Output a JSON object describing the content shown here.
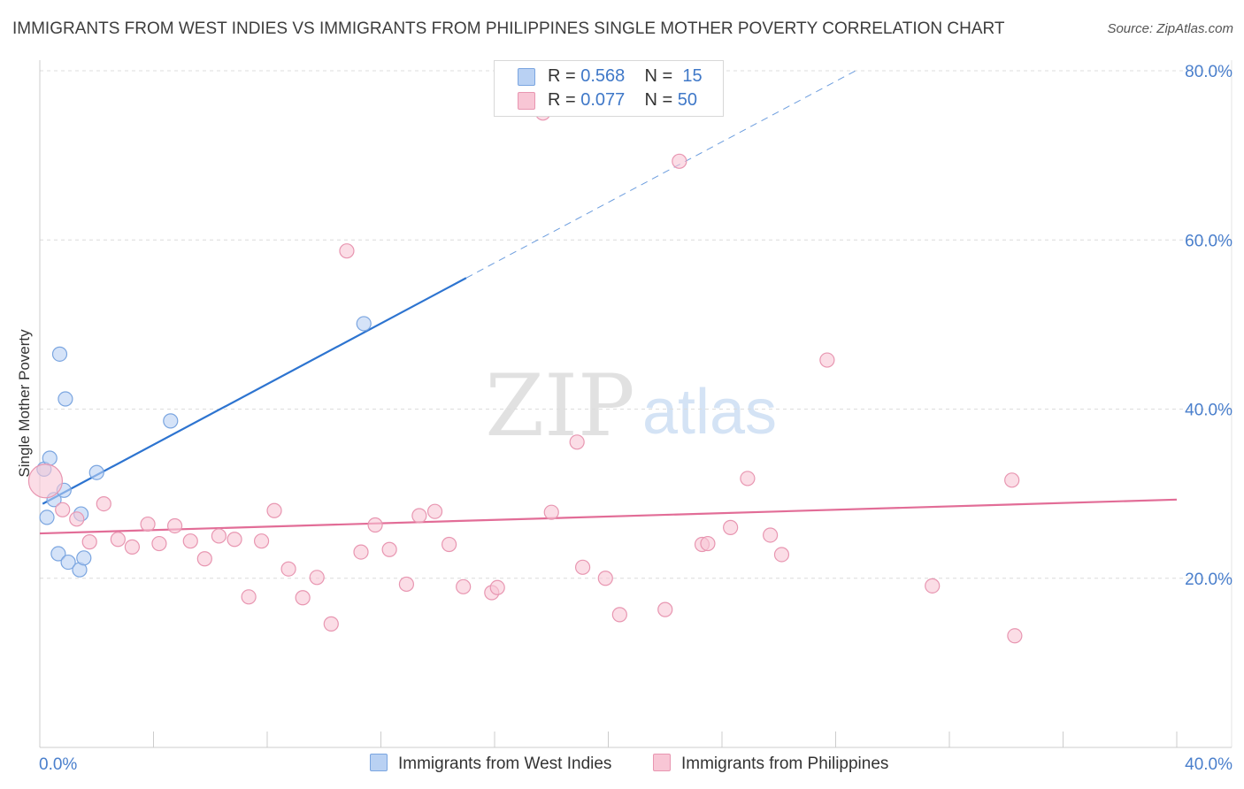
{
  "title": "IMMIGRANTS FROM WEST INDIES VS IMMIGRANTS FROM PHILIPPINES SINGLE MOTHER POVERTY CORRELATION CHART",
  "source": "Source: ZipAtlas.com",
  "watermark": {
    "zip": "ZIP",
    "atlas": "atlas"
  },
  "colors": {
    "west_indies_fill": "#b9d1f3",
    "west_indies_stroke": "#7aa5e0",
    "west_indies_line": "#2d74d0",
    "philippines_fill": "#f8c6d5",
    "philippines_stroke": "#e896b1",
    "philippines_line": "#e26d97",
    "axis_text": "#4a7fcc",
    "grid": "#dcdcdc"
  },
  "legend": {
    "rows": [
      {
        "r_label": "R = ",
        "r_value": "0.568",
        "n_label": "N = ",
        "n_value": "15"
      },
      {
        "r_label": "R = ",
        "r_value": "0.077",
        "n_label": "N = ",
        "n_value": "50"
      }
    ]
  },
  "chart_data": {
    "type": "scatter",
    "title": "IMMIGRANTS FROM WEST INDIES VS IMMIGRANTS FROM PHILIPPINES SINGLE MOTHER POVERTY CORRELATION CHART",
    "xlabel": "",
    "ylabel": "Single Mother Poverty",
    "xlim": [
      0,
      40
    ],
    "ylim": [
      0,
      80
    ],
    "x_tick_labels": [
      "0.0%",
      "40.0%"
    ],
    "y_ticks": [
      20,
      40,
      60,
      80
    ],
    "y_tick_labels": [
      "20.0%",
      "40.0%",
      "60.0%",
      "80.0%"
    ],
    "grid": true,
    "legend_position": "top-center",
    "series": [
      {
        "name": "Immigrants from West Indies",
        "R": 0.568,
        "N": 15,
        "trend": {
          "x0": 0.1,
          "y0": 28.8,
          "x1": 15.0,
          "y1": 55.5,
          "dash_to_x": 28.7,
          "dash_to_y": 80.0
        },
        "points": [
          {
            "x": 0.15,
            "y": 32.9
          },
          {
            "x": 0.25,
            "y": 27.2
          },
          {
            "x": 0.35,
            "y": 34.2
          },
          {
            "x": 0.5,
            "y": 29.3
          },
          {
            "x": 0.65,
            "y": 22.9
          },
          {
            "x": 0.7,
            "y": 46.5
          },
          {
            "x": 0.85,
            "y": 30.4
          },
          {
            "x": 0.9,
            "y": 41.2
          },
          {
            "x": 1.0,
            "y": 21.9
          },
          {
            "x": 1.4,
            "y": 21.0
          },
          {
            "x": 1.45,
            "y": 27.6
          },
          {
            "x": 1.55,
            "y": 22.4
          },
          {
            "x": 2.0,
            "y": 32.5
          },
          {
            "x": 4.6,
            "y": 38.6
          },
          {
            "x": 11.4,
            "y": 50.1
          }
        ]
      },
      {
        "name": "Immigrants from Philippines",
        "R": 0.077,
        "N": 50,
        "trend": {
          "x0": 0,
          "y0": 25.3,
          "x1": 40,
          "y1": 29.3
        },
        "points": [
          {
            "x": 0.2,
            "y": 31.5,
            "big": true
          },
          {
            "x": 0.8,
            "y": 28.1
          },
          {
            "x": 1.3,
            "y": 27.0
          },
          {
            "x": 1.75,
            "y": 24.3
          },
          {
            "x": 2.25,
            "y": 28.8
          },
          {
            "x": 2.75,
            "y": 24.6
          },
          {
            "x": 3.25,
            "y": 23.7
          },
          {
            "x": 3.8,
            "y": 26.4
          },
          {
            "x": 4.2,
            "y": 24.1
          },
          {
            "x": 4.75,
            "y": 26.2
          },
          {
            "x": 5.3,
            "y": 24.4
          },
          {
            "x": 5.8,
            "y": 22.3
          },
          {
            "x": 6.3,
            "y": 25.0
          },
          {
            "x": 6.85,
            "y": 24.6
          },
          {
            "x": 7.35,
            "y": 17.8
          },
          {
            "x": 7.8,
            "y": 24.4
          },
          {
            "x": 8.25,
            "y": 28.0
          },
          {
            "x": 8.75,
            "y": 21.1
          },
          {
            "x": 9.25,
            "y": 17.7
          },
          {
            "x": 9.75,
            "y": 20.1
          },
          {
            "x": 10.25,
            "y": 14.6
          },
          {
            "x": 10.8,
            "y": 58.7
          },
          {
            "x": 11.3,
            "y": 23.1
          },
          {
            "x": 11.8,
            "y": 26.3
          },
          {
            "x": 12.3,
            "y": 23.4
          },
          {
            "x": 12.9,
            "y": 19.3
          },
          {
            "x": 13.35,
            "y": 27.4
          },
          {
            "x": 13.9,
            "y": 27.9
          },
          {
            "x": 14.4,
            "y": 24.0
          },
          {
            "x": 14.9,
            "y": 19.0
          },
          {
            "x": 15.9,
            "y": 18.3
          },
          {
            "x": 16.1,
            "y": 18.9
          },
          {
            "x": 17.7,
            "y": 75.0
          },
          {
            "x": 18.0,
            "y": 27.8
          },
          {
            "x": 18.9,
            "y": 36.1
          },
          {
            "x": 19.1,
            "y": 21.3
          },
          {
            "x": 19.9,
            "y": 20.0
          },
          {
            "x": 20.4,
            "y": 15.7
          },
          {
            "x": 22.0,
            "y": 16.3
          },
          {
            "x": 22.5,
            "y": 69.3
          },
          {
            "x": 23.3,
            "y": 24.0
          },
          {
            "x": 23.5,
            "y": 24.1
          },
          {
            "x": 24.3,
            "y": 26.0
          },
          {
            "x": 24.9,
            "y": 31.8
          },
          {
            "x": 25.7,
            "y": 25.1
          },
          {
            "x": 26.1,
            "y": 22.8
          },
          {
            "x": 27.7,
            "y": 45.8
          },
          {
            "x": 31.4,
            "y": 19.1
          },
          {
            "x": 34.2,
            "y": 31.6
          },
          {
            "x": 34.3,
            "y": 13.2
          }
        ]
      }
    ]
  },
  "bottom_legend": [
    {
      "label": "Immigrants from West Indies"
    },
    {
      "label": "Immigrants from Philippines"
    }
  ]
}
